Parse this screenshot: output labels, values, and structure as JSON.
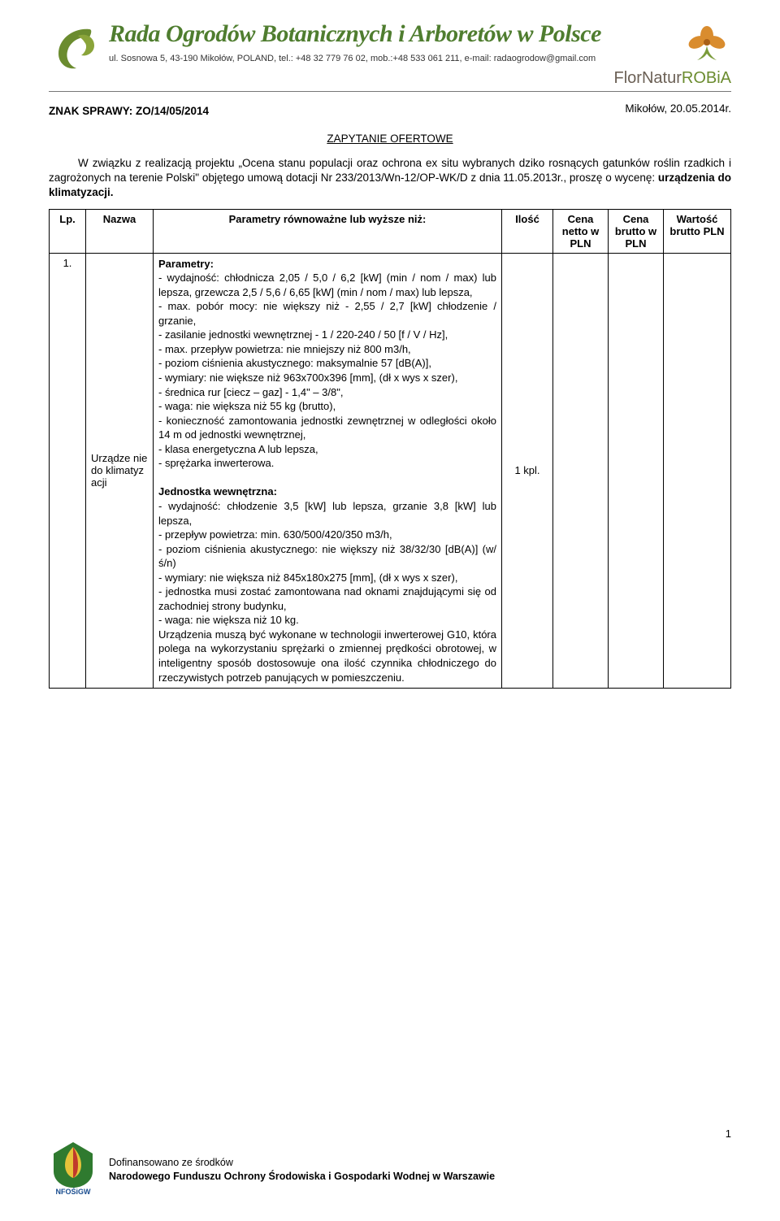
{
  "letterhead": {
    "org_name": "Rada Ogrodów Botanicznych i Arboretów w Polsce",
    "address_line": "ul. Sosnowa 5, 43-190 Mikołów, POLAND, tel.: +48 32 779 76 02, mob.:+48 533 061 211, e-mail: radaogrodow@gmail.com",
    "right_top_prefix": "FlorNatur",
    "right_top_suffix": "ROBiA",
    "logo_leaf_color": "#8aa43a",
    "logo_swirl_color": "#6b8c2f",
    "flower_petal_color": "#d98c2e",
    "flower_leaf_color": "#7a9b3a",
    "title_color": "#4f7d2f"
  },
  "doc": {
    "znak": "ZNAK SPRAWY: ZO/14/05/2014",
    "date": "Mikołów, 20.05.2014r.",
    "heading": "ZAPYTANIE OFERTOWE",
    "intro": "W związku z realizacją projektu „Ocena stanu populacji oraz ochrona ex situ wybranych dziko rosnących gatunków roślin rzadkich i zagrożonych na terenie Polski\" objętego umową dotacji Nr 233/2013/Wn-12/OP-WK/D z dnia 11.05.2013r., proszę o wycenę: ",
    "intro_bold": "urządzenia do klimatyzacji."
  },
  "table": {
    "headers": {
      "lp": "Lp.",
      "nazwa": "Nazwa",
      "param": "Parametry równoważne lub wyższe niż:",
      "ilosc": "Ilość",
      "cena_netto": "Cena netto w PLN",
      "cena_brutto": "Cena brutto w PLN",
      "wartosc_brutto": "Wartość brutto PLN"
    },
    "row": {
      "lp": "1.",
      "nazwa": "Urządze nie do klimatyz acji",
      "ilosc": "1 kpl.",
      "params_label": "Parametry:",
      "params_lines": [
        "- wydajność: chłodnicza 2,05 / 5,0 / 6,2 [kW] (min / nom / max) lub lepsza, grzewcza 2,5 / 5,6 / 6,65 [kW] (min / nom / max) lub lepsza,",
        "- max. pobór mocy: nie większy niż - 2,55 / 2,7 [kW] chłodzenie / grzanie,",
        "- zasilanie jednostki wewnętrznej - 1 / 220-240 / 50 [f / V / Hz],",
        "- max. przepływ powietrza: nie mniejszy niż 800 m3/h,",
        "- poziom ciśnienia akustycznego: maksymalnie 57 [dB(A)],",
        "- wymiary: nie większe niż 963x700x396 [mm], (dł x wys x szer),",
        "- średnica rur [ciecz – gaz] - 1,4\" – 3/8\",",
        "- waga: nie większa niż 55 kg (brutto),",
        "- konieczność zamontowania jednostki zewnętrznej w odległości około 14 m od jednostki wewnętrznej,",
        "- klasa energetyczna A lub lepsza,",
        "- sprężarka inwerterowa."
      ],
      "unit_header": "Jednostka wewnętrzna:",
      "unit_lines": [
        "- wydajność: chłodzenie 3,5 [kW] lub lepsza, grzanie 3,8 [kW] lub lepsza,",
        "- przepływ powietrza: min. 630/500/420/350 m3/h,",
        "- poziom ciśnienia akustycznego: nie większy niż 38/32/30 [dB(A)] (w/ś/n)",
        "- wymiary: nie większa niż 845x180x275 [mm], (dł x wys x szer),",
        "- jednostka musi zostać zamontowana nad oknami znajdującymi się od zachodniej strony budynku,",
        "- waga: nie większa niż 10 kg."
      ],
      "tail": "Urządzenia muszą być wykonane w technologii inwerterowej G10, która polega na wykorzystaniu sprężarki o zmiennej prędkości obrotowej, w inteligentny sposób dostosowuje ona ilość czynnika chłodniczego do rzeczywistych potrzeb panujących w pomieszczeniu."
    }
  },
  "footer": {
    "line1": "Dofinansowano ze środków",
    "line2": "Narodowego Funduszu Ochrony Środowiska i Gospodarki Wodnej w Warszawie",
    "page_num": "1",
    "nf_label": "NFOŚiGW",
    "nf_green": "#2f7a2f",
    "nf_red": "#c0392b",
    "nf_yellow": "#e6c23a"
  }
}
